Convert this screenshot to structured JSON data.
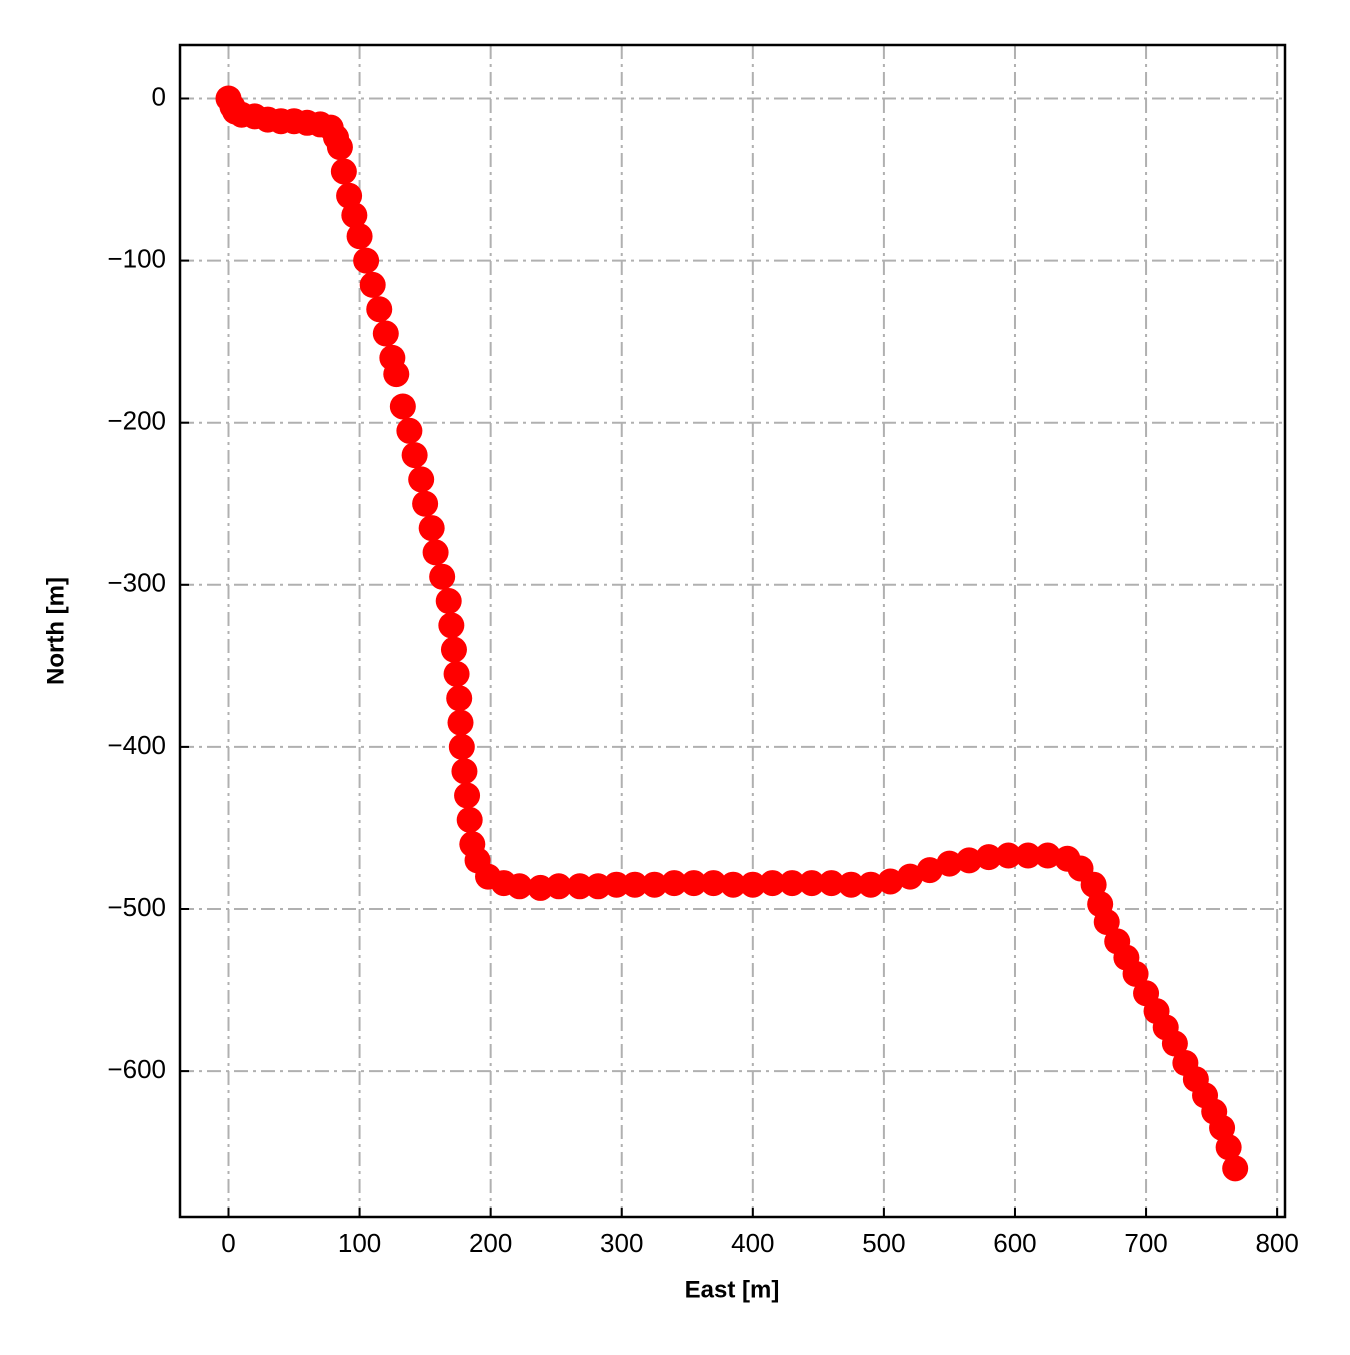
{
  "chart_data": {
    "type": "scatter",
    "xlabel": "East [m]",
    "ylabel": "North [m]",
    "color": "#ff0000",
    "grid": true,
    "x": [
      0,
      3,
      5,
      10,
      20,
      30,
      40,
      50,
      60,
      70,
      78,
      82,
      85,
      88,
      92,
      96,
      100,
      105,
      110,
      115,
      120,
      125,
      128,
      133,
      138,
      142,
      147,
      150,
      155,
      158,
      163,
      168,
      170,
      172,
      174,
      176,
      177,
      178,
      180,
      182,
      184,
      186,
      190,
      198,
      210,
      222,
      238,
      252,
      268,
      282,
      296,
      310,
      325,
      340,
      355,
      370,
      385,
      400,
      415,
      430,
      445,
      460,
      475,
      490,
      505,
      520,
      535,
      550,
      565,
      580,
      595,
      610,
      625,
      640,
      650,
      660,
      665,
      670,
      678,
      685,
      692,
      700,
      708,
      715,
      722,
      730,
      738,
      745,
      752,
      758,
      763,
      768
    ],
    "values": [
      0,
      -5,
      -8,
      -10,
      -11,
      -13,
      -14,
      -14,
      -15,
      -16,
      -18,
      -24,
      -30,
      -45,
      -60,
      -72,
      -85,
      -100,
      -115,
      -130,
      -145,
      -160,
      -170,
      -190,
      -205,
      -220,
      -235,
      -250,
      -265,
      -280,
      -295,
      -310,
      -325,
      -340,
      -355,
      -370,
      -385,
      -400,
      -415,
      -430,
      -445,
      -460,
      -470,
      -480,
      -484,
      -486,
      -487,
      -486,
      -486,
      -486,
      -485,
      -485,
      -485,
      -484,
      -484,
      -484,
      -485,
      -485,
      -484,
      -484,
      -484,
      -484,
      -485,
      -485,
      -483,
      -480,
      -476,
      -472,
      -470,
      -468,
      -467,
      -467,
      -467,
      -469,
      -475,
      -485,
      -497,
      -508,
      -520,
      -530,
      -540,
      -552,
      -563,
      -573,
      -583,
      -595,
      -605,
      -615,
      -625,
      -635,
      -647,
      -660
    ],
    "xlim": [
      -37,
      806
    ],
    "ylim": [
      -690,
      33
    ],
    "xticks": [
      0,
      100,
      200,
      300,
      400,
      500,
      600,
      700,
      800
    ],
    "yticks": [
      {
        "value": -600,
        "label": "−600"
      },
      {
        "value": -500,
        "label": "−500"
      },
      {
        "value": -400,
        "label": "−400"
      },
      {
        "value": -300,
        "label": "−300"
      },
      {
        "value": -200,
        "label": "−200"
      },
      {
        "value": -100,
        "label": "−100"
      },
      0
    ]
  }
}
